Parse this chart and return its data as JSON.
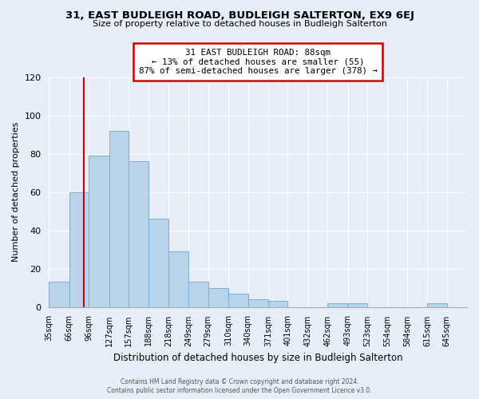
{
  "title": "31, EAST BUDLEIGH ROAD, BUDLEIGH SALTERTON, EX9 6EJ",
  "subtitle": "Size of property relative to detached houses in Budleigh Salterton",
  "xlabel": "Distribution of detached houses by size in Budleigh Salterton",
  "ylabel": "Number of detached properties",
  "bar_labels": [
    "35sqm",
    "66sqm",
    "96sqm",
    "127sqm",
    "157sqm",
    "188sqm",
    "218sqm",
    "249sqm",
    "279sqm",
    "310sqm",
    "340sqm",
    "371sqm",
    "401sqm",
    "432sqm",
    "462sqm",
    "493sqm",
    "523sqm",
    "554sqm",
    "584sqm",
    "615sqm",
    "645sqm"
  ],
  "bar_values": [
    13,
    60,
    79,
    92,
    76,
    46,
    29,
    13,
    10,
    7,
    4,
    3,
    0,
    0,
    2,
    2,
    0,
    0,
    0,
    2,
    0
  ],
  "bar_color": "#b8d4ea",
  "bar_edge_color": "#7aafd4",
  "ylim": [
    0,
    120
  ],
  "yticks": [
    0,
    20,
    40,
    60,
    80,
    100,
    120
  ],
  "vline_x": 88,
  "vline_color": "#cc0000",
  "annotation_title": "31 EAST BUDLEIGH ROAD: 88sqm",
  "annotation_line1": "← 13% of detached houses are smaller (55)",
  "annotation_line2": "87% of semi-detached houses are larger (378) →",
  "annotation_box_color": "#ffffff",
  "annotation_box_edge": "#cc0000",
  "footer1": "Contains HM Land Registry data © Crown copyright and database right 2024.",
  "footer2": "Contains public sector information licensed under the Open Government Licence v3.0.",
  "background_color": "#e8eef8",
  "grid_color": "#ffffff",
  "left_edges": [
    35,
    66,
    96,
    127,
    157,
    188,
    218,
    249,
    279,
    310,
    340,
    371,
    401,
    432,
    462,
    493,
    523,
    554,
    584,
    615,
    645
  ]
}
